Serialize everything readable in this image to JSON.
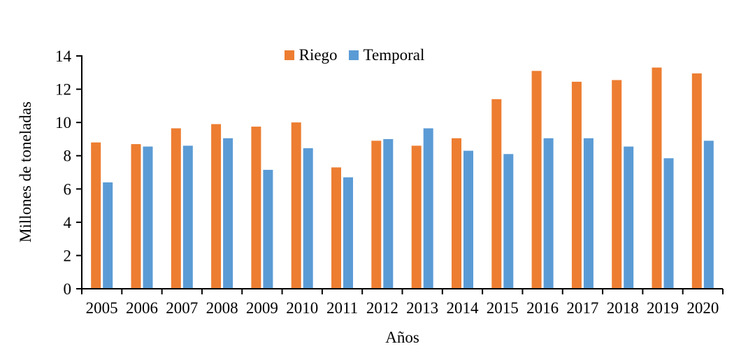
{
  "chart_data": {
    "type": "bar",
    "title": "",
    "xlabel": "Años",
    "ylabel": "Millones de toneladas",
    "categories": [
      "2005",
      "2006",
      "2007",
      "2008",
      "2009",
      "2010",
      "2011",
      "2012",
      "2013",
      "2014",
      "2015",
      "2016",
      "2017",
      "2018",
      "2019",
      "2020"
    ],
    "series": [
      {
        "name": "Riego",
        "color": "#ED7D31",
        "values": [
          8.8,
          8.7,
          9.65,
          9.9,
          9.75,
          10.0,
          7.3,
          8.9,
          8.6,
          9.05,
          11.4,
          13.1,
          12.45,
          12.55,
          13.3,
          12.95
        ]
      },
      {
        "name": "Temporal",
        "color": "#5B9BD5",
        "values": [
          6.4,
          8.55,
          8.6,
          9.05,
          7.15,
          8.45,
          6.7,
          9.0,
          9.65,
          8.3,
          8.1,
          9.05,
          9.05,
          8.55,
          7.85,
          8.9
        ]
      }
    ],
    "ylim": [
      0,
      14
    ],
    "yticks": [
      0,
      2,
      4,
      6,
      8,
      10,
      12,
      14
    ],
    "grid": false,
    "legend_position": "top-center",
    "axis_color": "#000000"
  }
}
